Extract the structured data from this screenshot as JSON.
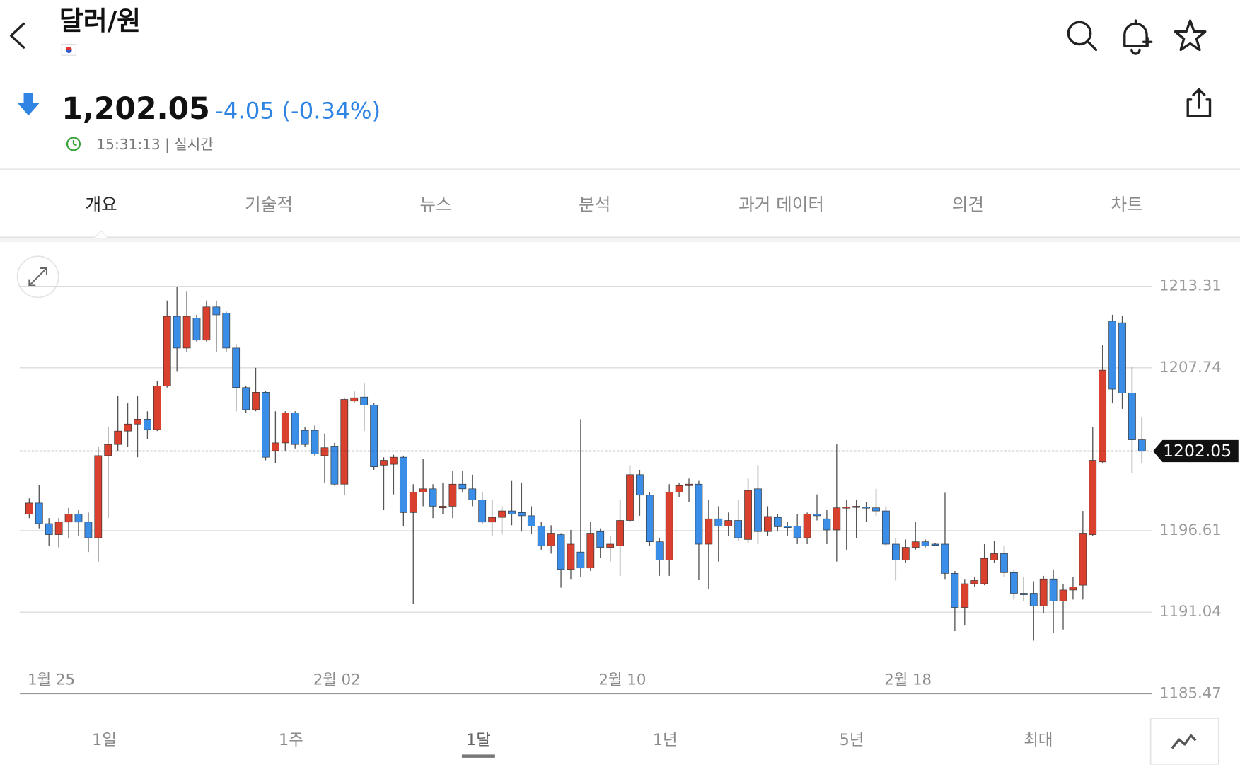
{
  "header": {
    "title": "달러/원",
    "price": "1,202.05",
    "change": "-4.05 (-0.34%)",
    "time": "15:31:13 | 실시간"
  },
  "tabs": [
    "개요",
    "기술적",
    "뉴스",
    "분석",
    "과거 데이터",
    "의견",
    "차트"
  ],
  "ranges": [
    "1일",
    "1주",
    "1달",
    "1년",
    "5년",
    "최대"
  ],
  "chart_data": {
    "type": "candlestick",
    "categories": [
      null,
      null,
      "1월 25",
      null,
      null,
      null,
      null,
      null,
      null,
      null,
      null,
      null,
      null,
      null,
      null,
      null,
      null,
      null,
      null,
      null,
      null,
      null,
      null,
      null,
      null,
      null,
      null,
      null,
      null,
      null,
      null,
      "2월 02",
      null,
      null,
      null,
      null,
      null,
      null,
      null,
      null,
      null,
      null,
      null,
      null,
      null,
      null,
      null,
      null,
      null,
      null,
      null,
      null,
      null,
      null,
      null,
      null,
      null,
      null,
      null,
      null,
      "2월 10",
      null,
      null,
      null,
      null,
      null,
      null,
      null,
      null,
      null,
      null,
      null,
      null,
      null,
      null,
      null,
      null,
      null,
      null,
      null,
      null,
      null,
      null,
      null,
      null,
      null,
      null,
      null,
      null,
      "2월 18",
      null,
      null,
      null,
      null,
      null,
      null,
      null,
      null,
      null,
      null,
      null,
      null,
      null,
      null,
      null,
      null,
      null,
      null,
      null,
      null,
      null,
      null,
      null,
      null
    ],
    "open": [
      1197.74,
      1198.5,
      1197.09,
      1196.34,
      1197.2,
      1197.74,
      1197.2,
      1196.12,
      1201.74,
      1202.5,
      1203.42,
      1203.9,
      1204.23,
      1203.52,
      1206.5,
      1211.26,
      1209.09,
      1211.15,
      1209.63,
      1211.9,
      1211.47,
      1209.09,
      1206.39,
      1204.88,
      1206.07,
      1202.07,
      1202.61,
      1204.66,
      1203.47,
      1203.47,
      1201.74,
      1202.39,
      1199.79,
      1205.47,
      1205.74,
      1205.2,
      1201.09,
      1201.15,
      1201.63,
      1197.85,
      1199.25,
      1199.47,
      1198.17,
      1198.28,
      1199.79,
      1199.47,
      1198.71,
      1197.2,
      1197.52,
      1197.96,
      1197.85,
      1197.63,
      1196.93,
      1195.58,
      1196.34,
      1193.96,
      1195.15,
      1194.06,
      1196.55,
      1195.47,
      1195.58,
      1197.31,
      1200.44,
      1199.04,
      1195.85,
      1194.61,
      1199.25,
      1199.69,
      1199.79,
      1195.69,
      1197.42,
      1196.93,
      1197.31,
      1196.01,
      1199.47,
      1196.55,
      1197.52,
      1196.93,
      1196.93,
      1196.12,
      1197.74,
      1197.42,
      1196.66,
      1198.17,
      1198.23,
      1198.23,
      1198.17,
      1197.96,
      1195.69,
      1194.61,
      1195.47,
      1195.85,
      1195.69,
      1195.69,
      1193.69,
      1191.36,
      1192.98,
      1192.98,
      1194.61,
      1195.04,
      1193.74,
      1192.33,
      1192.33,
      1191.47,
      1193.31,
      1191.79,
      1192.55,
      1192.88,
      1196.34,
      1201.31,
      1210.93,
      1210.82,
      1206.01,
      1202.82
    ],
    "high": [
      1198.82,
      1199.74,
      1197.47,
      1197.47,
      1198.17,
      1198.01,
      1197.85,
      1202.34,
      1203.69,
      1205.85,
      1205.31,
      1205.85,
      1204.77,
      1206.82,
      1212.34,
      1213.26,
      1212.99,
      1211.36,
      1212.34,
      1212.34,
      1211.58,
      1209.36,
      1206.5,
      1207.74,
      1206.17,
      1204.77,
      1204.77,
      1204.77,
      1203.69,
      1203.8,
      1203.25,
      1202.61,
      1205.69,
      1206.12,
      1206.71,
      1205.31,
      1201.63,
      1201.8,
      1201.74,
      1199.79,
      1201.52,
      1199.79,
      1199.9,
      1200.71,
      1200.71,
      1200.44,
      1199.25,
      1198.71,
      1198.28,
      1200.01,
      1199.9,
      1198.28,
      1197.2,
      1196.98,
      1196.44,
      1196.66,
      1204.23,
      1197.2,
      1196.77,
      1196.23,
      1198.71,
      1201.09,
      1200.77,
      1199.25,
      1196.12,
      1199.79,
      1199.9,
      1200.17,
      1200.01,
      1198.71,
      1198.28,
      1197.85,
      1198.71,
      1200.17,
      1201.09,
      1198.28,
      1197.74,
      1197.2,
      1197.74,
      1197.85,
      1199.09,
      1198.01,
      1202.5,
      1198.71,
      1198.71,
      1198.55,
      1199.47,
      1198.28,
      1196.12,
      1196.01,
      1197.2,
      1196.01,
      1195.79,
      1199.2,
      1193.85,
      1193.31,
      1193.42,
      1195.69,
      1195.9,
      1195.58,
      1193.96,
      1193.42,
      1193.15,
      1193.52,
      1193.96,
      1192.98,
      1193.42,
      1197.96,
      1203.69,
      1209.31,
      1211.36,
      1211.26,
      1207.8,
      1204.34
    ],
    "low": [
      1197.47,
      1196.77,
      1195.58,
      1195.47,
      1196.12,
      1196.23,
      1195.15,
      1194.5,
      1197.47,
      1202.07,
      1202.34,
      1201.63,
      1202.88,
      1203.42,
      1206.39,
      1207.47,
      1208.82,
      1209.53,
      1209.53,
      1208.82,
      1208.82,
      1204.77,
      1204.66,
      1204.77,
      1201.42,
      1201.25,
      1202.07,
      1202.23,
      1202.34,
      1201.74,
      1199.9,
      1199.69,
      1199.04,
      1205.31,
      1203.42,
      1200.77,
      1198.01,
      1199.09,
      1196.93,
      1191.63,
      1198.28,
      1197.47,
      1197.74,
      1197.47,
      1199.25,
      1198.28,
      1197.09,
      1196.23,
      1196.34,
      1196.98,
      1196.55,
      1196.39,
      1195.31,
      1195.04,
      1192.71,
      1193.31,
      1193.42,
      1193.85,
      1194.77,
      1194.5,
      1193.52,
      1197.2,
      1197.63,
      1195.58,
      1193.52,
      1193.52,
      1198.93,
      1198.55,
      1193.25,
      1192.61,
      1194.5,
      1196.23,
      1195.9,
      1195.79,
      1195.69,
      1196.23,
      1196.55,
      1196.23,
      1195.69,
      1195.69,
      1197.31,
      1195.69,
      1194.5,
      1195.31,
      1196.12,
      1197.2,
      1197.63,
      1195.58,
      1193.2,
      1194.39,
      1195.31,
      1195.47,
      1195.58,
      1193.31,
      1189.74,
      1190.17,
      1192.77,
      1192.88,
      1194.39,
      1193.42,
      1191.9,
      1191.79,
      1189.09,
      1190.98,
      1189.63,
      1189.85,
      1191.9,
      1191.9,
      1196.23,
      1201.2,
      1205.31,
      1204.93,
      1200.55,
      1201.2
    ],
    "close": [
      1198.5,
      1197.09,
      1196.34,
      1197.2,
      1197.74,
      1197.2,
      1196.12,
      1201.74,
      1202.5,
      1203.42,
      1203.9,
      1204.23,
      1203.52,
      1206.5,
      1211.26,
      1209.09,
      1211.26,
      1209.63,
      1211.9,
      1211.36,
      1209.09,
      1206.39,
      1204.88,
      1206.07,
      1201.63,
      1202.61,
      1204.66,
      1202.5,
      1202.5,
      1201.85,
      1202.28,
      1199.79,
      1205.58,
      1205.69,
      1205.2,
      1200.98,
      1201.42,
      1201.63,
      1197.85,
      1199.25,
      1199.47,
      1198.28,
      1198.28,
      1199.79,
      1199.47,
      1198.71,
      1197.2,
      1197.52,
      1197.96,
      1197.74,
      1197.63,
      1196.93,
      1195.58,
      1196.44,
      1193.96,
      1195.69,
      1194.06,
      1196.44,
      1195.47,
      1195.69,
      1197.31,
      1200.44,
      1199.04,
      1195.85,
      1194.61,
      1199.25,
      1199.69,
      1199.79,
      1195.69,
      1197.42,
      1196.93,
      1197.31,
      1196.12,
      1199.36,
      1196.55,
      1197.58,
      1196.88,
      1196.82,
      1196.12,
      1197.74,
      1197.63,
      1196.66,
      1198.17,
      1198.23,
      1198.28,
      1198.17,
      1197.96,
      1195.69,
      1194.61,
      1195.47,
      1195.85,
      1195.58,
      1195.63,
      1193.69,
      1191.36,
      1192.98,
      1193.2,
      1194.71,
      1195.04,
      1193.74,
      1192.33,
      1192.23,
      1191.47,
      1193.31,
      1191.79,
      1192.55,
      1192.77,
      1196.44,
      1201.42,
      1207.58,
      1206.28,
      1206.01,
      1202.82,
      1202.05
    ],
    "up_color": "#d9412e",
    "down_color": "#3b8ee8",
    "ylim": [
      1185.47,
      1213.31
    ],
    "yticks": [
      1185.47,
      1191.04,
      1196.61,
      1207.74,
      1213.31
    ],
    "grid": true,
    "current": 1202.05
  }
}
